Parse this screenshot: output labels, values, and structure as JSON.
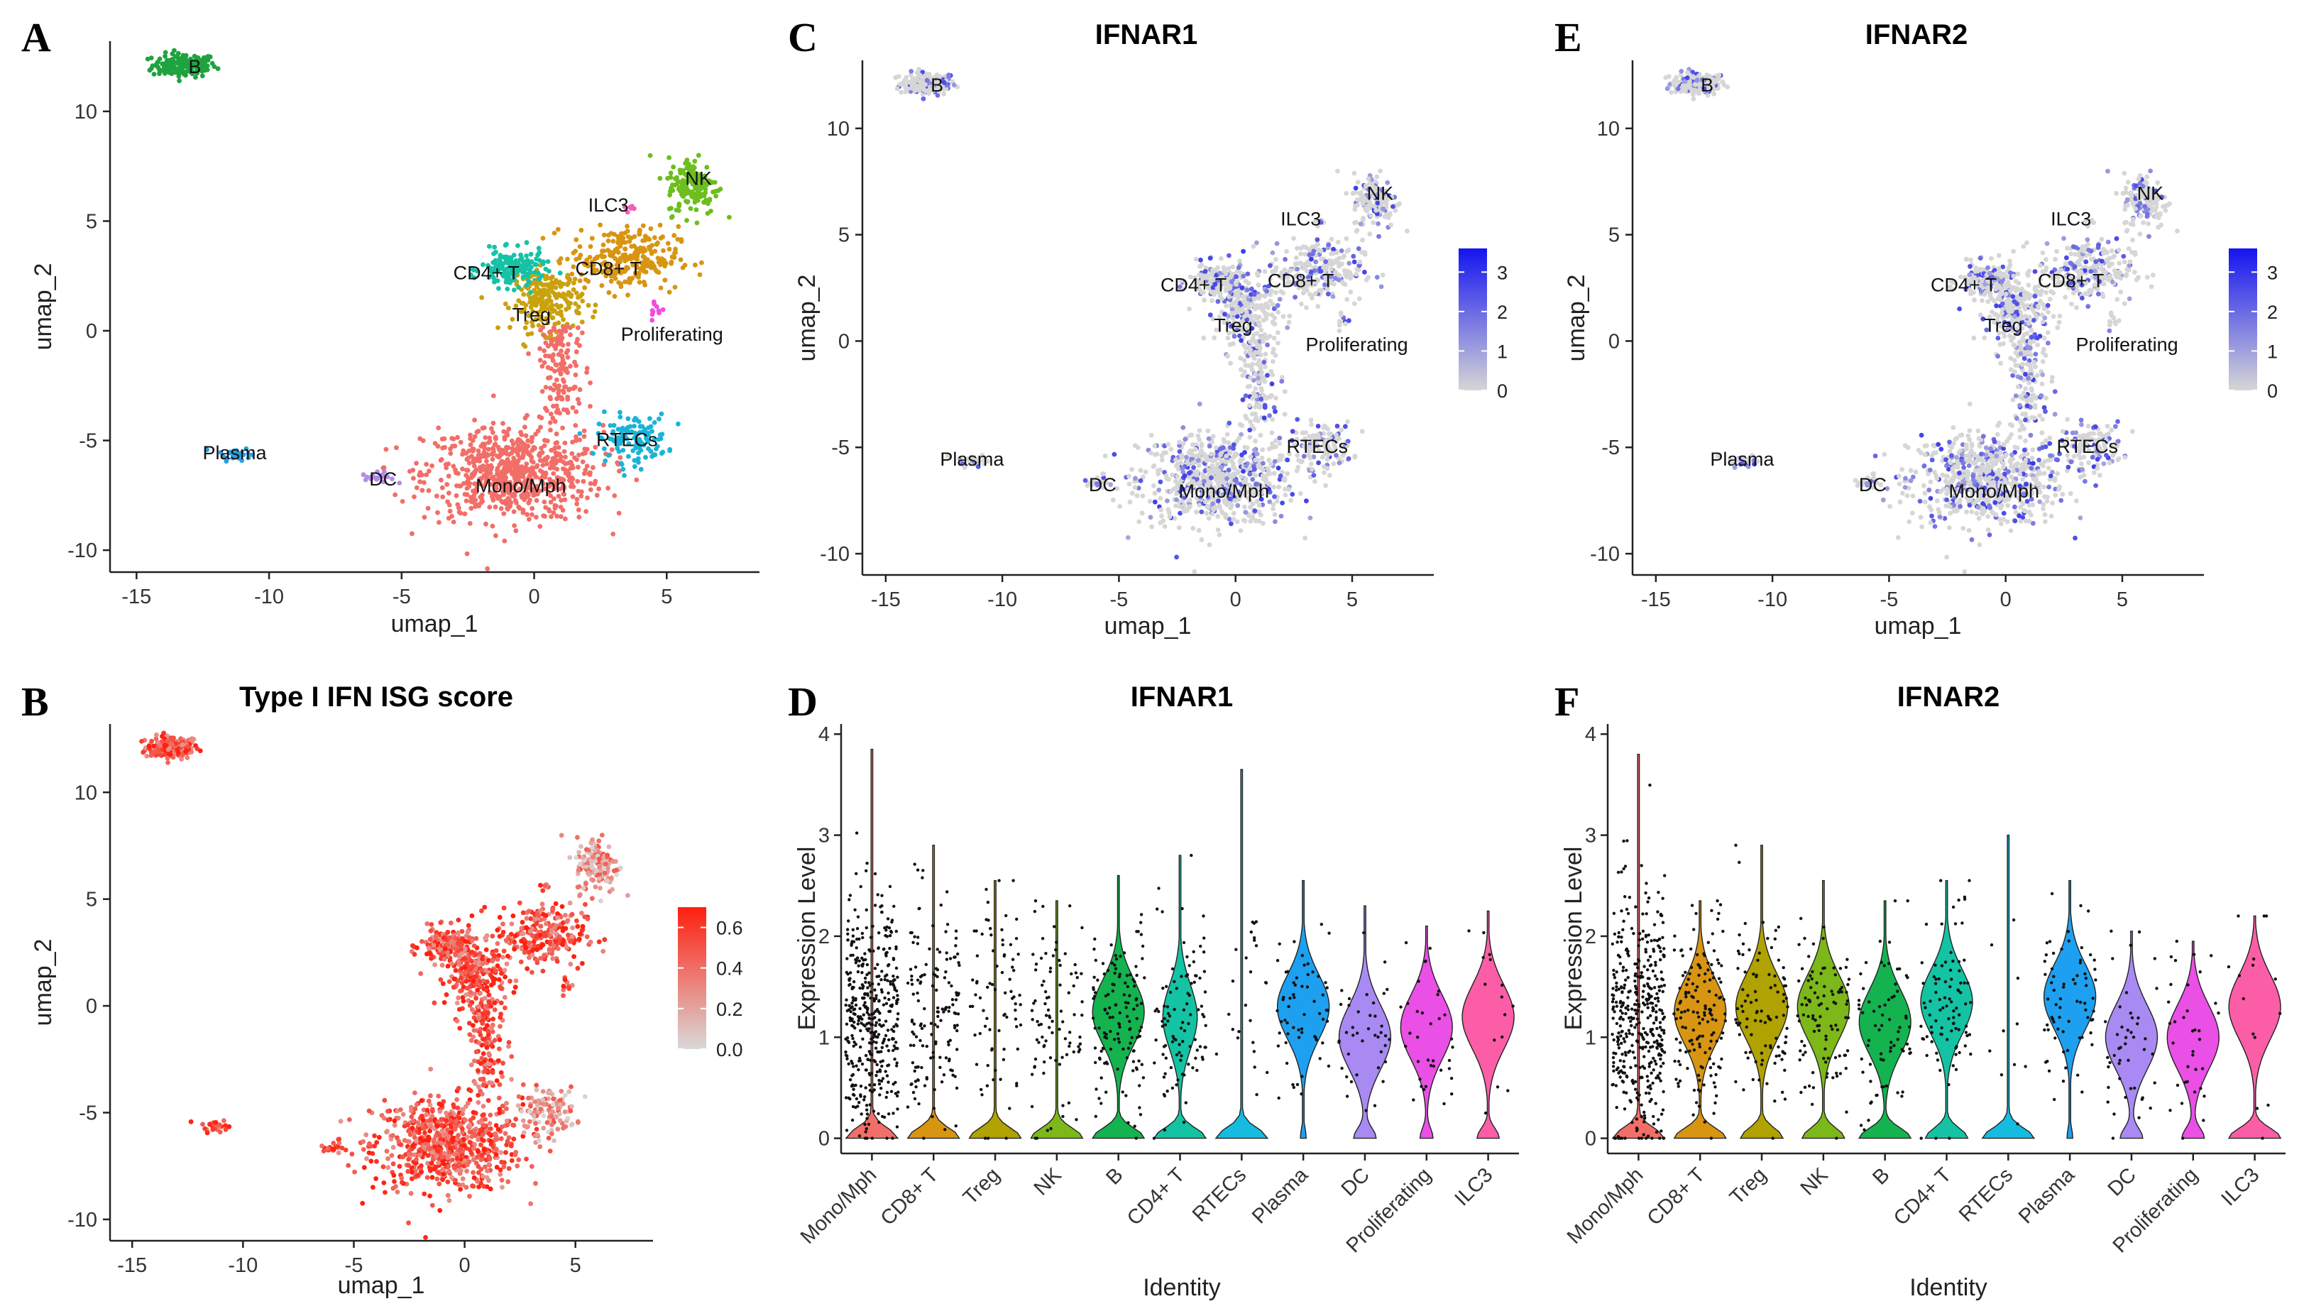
{
  "figure": {
    "panel_letters": [
      "A",
      "B",
      "C",
      "D",
      "E",
      "F"
    ]
  },
  "chart_data": [
    {
      "panel": "A",
      "type": "scatter",
      "title": "",
      "xlabel": "umap_1",
      "ylabel": "umap_2",
      "xlim": [
        -16,
        8.5
      ],
      "ylim": [
        -11,
        13.2
      ],
      "xticks": [
        "-15",
        "-10",
        "-5",
        "0",
        "5"
      ],
      "yticks": [
        "-10",
        "-5",
        "0",
        "5",
        "10"
      ],
      "coloring": "cluster",
      "clusters": [
        {
          "label": "B",
          "color": "#1fa340",
          "center": [
            -13.2,
            12.1
          ],
          "spread": [
            1.0,
            0.45
          ],
          "n": 160
        },
        {
          "label": "Plasma",
          "color": "#2a9fe0",
          "center": [
            -11.3,
            -5.6
          ],
          "spread": [
            0.5,
            0.25
          ],
          "n": 30
        },
        {
          "label": "DC",
          "color": "#b48ce8",
          "center": [
            -5.9,
            -6.7
          ],
          "spread": [
            0.5,
            0.2
          ],
          "n": 20
        },
        {
          "label": "Mono/Mph",
          "color": "#f26e68",
          "center": [
            -0.8,
            -6.5
          ],
          "spread": [
            2.8,
            1.8
          ],
          "n": 700
        },
        {
          "label": "RTECs",
          "color": "#1ab4d8",
          "center": [
            3.7,
            -4.9
          ],
          "spread": [
            1.1,
            0.9
          ],
          "n": 120
        },
        {
          "label": "Treg",
          "color": "#c9a20d",
          "center": [
            0.5,
            1.4
          ],
          "spread": [
            1.1,
            1.2
          ],
          "n": 220
        },
        {
          "label": "CD4+ T",
          "color": "#17c1a6",
          "center": [
            -0.8,
            2.8
          ],
          "spread": [
            1.0,
            0.7
          ],
          "n": 160
        },
        {
          "label": "CD8+ T",
          "color": "#d89512",
          "center": [
            3.4,
            3.3
          ],
          "spread": [
            1.7,
            1.2
          ],
          "n": 260
        },
        {
          "label": "NK",
          "color": "#6dbe1e",
          "center": [
            6.0,
            6.6
          ],
          "spread": [
            0.8,
            1.1
          ],
          "n": 160
        },
        {
          "label": "ILC3",
          "color": "#f15fb8",
          "center": [
            3.6,
            5.6
          ],
          "spread": [
            0.2,
            0.2
          ],
          "n": 6
        },
        {
          "label": "Proliferating",
          "color": "#f04de0",
          "center": [
            4.6,
            1.0
          ],
          "spread": [
            0.25,
            0.4
          ],
          "n": 10
        }
      ]
    },
    {
      "panel": "B",
      "type": "scatter",
      "title": "Type I IFN ISG score",
      "xlabel": "umap_1",
      "ylabel": "umap_2",
      "xlim": [
        -16,
        8.5
      ],
      "ylim": [
        -11,
        13.2
      ],
      "xticks": [
        "-15",
        "-10",
        "-5",
        "0",
        "5"
      ],
      "yticks": [
        "-10",
        "-5",
        "0",
        "5",
        "10"
      ],
      "coloring": "feature",
      "color_range": [
        "#d9d9d9",
        "#ff1f0f"
      ],
      "legend": {
        "min": 0.0,
        "max": 0.7,
        "ticks": [
          "0.0",
          "0.2",
          "0.4",
          "0.6"
        ],
        "tick_values": [
          0.0,
          0.2,
          0.4,
          0.6
        ]
      }
    },
    {
      "panel": "C",
      "type": "scatter",
      "title": "IFNAR1",
      "xlabel": "umap_1",
      "ylabel": "umap_2",
      "xlim": [
        -16,
        8.5
      ],
      "ylim": [
        -11,
        13.2
      ],
      "xticks": [
        "-15",
        "-10",
        "-5",
        "0",
        "5"
      ],
      "yticks": [
        "-10",
        "-5",
        "0",
        "5",
        "10"
      ],
      "coloring": "feature",
      "color_range": [
        "#d6d6d6",
        "#1414f0"
      ],
      "legend": {
        "min": 0,
        "max": 3.6,
        "ticks": [
          "0",
          "1",
          "2",
          "3"
        ],
        "tick_values": [
          0,
          1,
          2,
          3
        ]
      },
      "cluster_labels": [
        "B",
        "Plasma",
        "DC",
        "Mono/Mph",
        "RTECs",
        "Treg",
        "CD4+ T",
        "CD8+ T",
        "NK",
        "ILC3",
        "Proliferating"
      ]
    },
    {
      "panel": "D",
      "type": "violin",
      "title": "IFNAR1",
      "xlabel": "Identity",
      "ylabel": "Expression Level",
      "ylim": [
        -0.15,
        4.1
      ],
      "yticks": [
        "0",
        "1",
        "2",
        "3",
        "4"
      ],
      "categories": [
        "Mono/Mph",
        "CD8+ T",
        "Treg",
        "NK",
        "B",
        "CD4+ T",
        "RTECs",
        "Plasma",
        "DC",
        "Proliferating",
        "ILC3"
      ],
      "colors": [
        "#f26e68",
        "#d89512",
        "#b0a200",
        "#7cb81a",
        "#14b34f",
        "#14c3a3",
        "#16bce0",
        "#1ea0f0",
        "#a88af2",
        "#ea4fe6",
        "#fb5ea6"
      ],
      "max_values": [
        3.85,
        2.9,
        2.55,
        2.35,
        2.6,
        2.8,
        3.65,
        2.55,
        2.3,
        2.1,
        2.25
      ],
      "upper_mode": [
        0,
        0,
        0,
        0,
        1.25,
        1.2,
        0,
        1.3,
        1.0,
        1.1,
        1.2
      ],
      "zero_fraction": [
        0.9,
        0.95,
        0.97,
        0.97,
        0.5,
        0.6,
        0.97,
        0.1,
        0.3,
        0.2,
        0.3
      ],
      "n_points": [
        420,
        150,
        80,
        90,
        130,
        100,
        25,
        60,
        40,
        35,
        15
      ]
    },
    {
      "panel": "E",
      "type": "scatter",
      "title": "IFNAR2",
      "xlabel": "umap_1",
      "ylabel": "umap_2",
      "xlim": [
        -16,
        8.5
      ],
      "ylim": [
        -11,
        13.2
      ],
      "xticks": [
        "-15",
        "-10",
        "-5",
        "0",
        "5"
      ],
      "yticks": [
        "-10",
        "-5",
        "0",
        "5",
        "10"
      ],
      "coloring": "feature",
      "color_range": [
        "#d6d6d6",
        "#1414f0"
      ],
      "legend": {
        "min": 0,
        "max": 3.6,
        "ticks": [
          "0",
          "1",
          "2",
          "3"
        ],
        "tick_values": [
          0,
          1,
          2,
          3
        ]
      },
      "cluster_labels": [
        "B",
        "Plasma",
        "DC",
        "Mono/Mph",
        "RTECs",
        "Treg",
        "CD4+ T",
        "CD8+ T",
        "NK",
        "ILC3",
        "Proliferating"
      ]
    },
    {
      "panel": "F",
      "type": "violin",
      "title": "IFNAR2",
      "xlabel": "Identity",
      "ylabel": "Expression Level",
      "ylim": [
        -0.15,
        4.1
      ],
      "yticks": [
        "0",
        "1",
        "2",
        "3",
        "4"
      ],
      "categories": [
        "Mono/Mph",
        "CD8+ T",
        "Treg",
        "NK",
        "B",
        "CD4+ T",
        "RTECs",
        "Plasma",
        "DC",
        "Proliferating",
        "ILC3"
      ],
      "colors": [
        "#f26e68",
        "#d89512",
        "#b0a200",
        "#7cb81a",
        "#14b34f",
        "#14c3a3",
        "#16bce0",
        "#1ea0f0",
        "#a88af2",
        "#ea4fe6",
        "#fb5ea6"
      ],
      "max_values": [
        3.8,
        2.35,
        2.9,
        2.55,
        2.35,
        2.55,
        3.0,
        2.55,
        2.05,
        1.95,
        2.2
      ],
      "upper_mode": [
        0,
        1.25,
        1.3,
        1.3,
        1.15,
        1.35,
        0,
        1.4,
        1.0,
        1.0,
        1.3
      ],
      "zero_fraction": [
        0.9,
        0.5,
        0.45,
        0.45,
        0.5,
        0.45,
        0.97,
        0.1,
        0.3,
        0.3,
        0.5
      ],
      "n_points": [
        420,
        150,
        100,
        100,
        70,
        90,
        10,
        70,
        45,
        35,
        15
      ]
    }
  ]
}
